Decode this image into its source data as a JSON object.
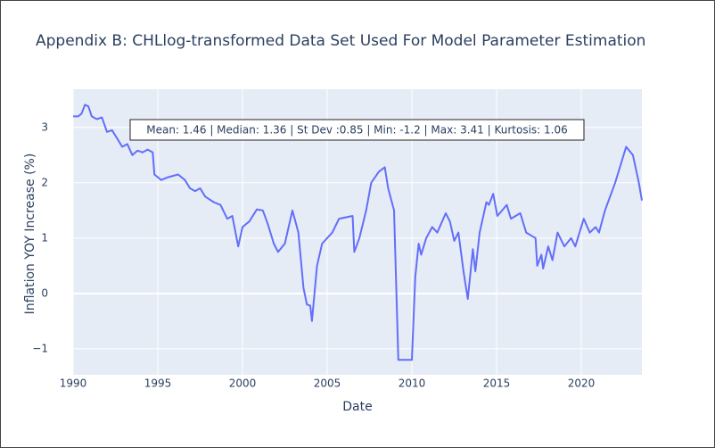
{
  "chart_data": {
    "type": "line",
    "title": "Appendix B: CHLlog-transformed Data Set Used For Model Parameter Estimation",
    "x_label": "Date",
    "y_label": "Inflation YOY Increase (%)",
    "annotation": "Mean: 1.46 | Median: 1.36 | St Dev :0.85 | Min: -1.2 | Max: 3.41 | Kurtosis: 1.06",
    "color": "#636efa",
    "grid": true,
    "xlim": [
      1990,
      2023.58
    ],
    "xticks": [
      1990,
      1995,
      2000,
      2005,
      2010,
      2015,
      2020
    ],
    "ylim": [
      -1.47,
      3.69
    ],
    "yticks": [
      {
        "value": -1,
        "label": "−1"
      },
      0,
      1,
      2,
      3
    ],
    "x": [
      1990.0,
      1990.3,
      1990.5,
      1990.7,
      1990.9,
      1991.1,
      1991.4,
      1991.7,
      1992.0,
      1992.3,
      1992.6,
      1992.9,
      1993.2,
      1993.5,
      1993.8,
      1994.1,
      1994.4,
      1994.7,
      1994.8,
      1995.2,
      1995.6,
      1996.2,
      1996.6,
      1996.9,
      1997.2,
      1997.5,
      1997.8,
      1998.3,
      1998.7,
      1999.1,
      1999.4,
      1999.75,
      2000.0,
      2000.4,
      2000.85,
      2001.2,
      2001.5,
      2001.85,
      2002.1,
      2002.5,
      2002.95,
      2003.3,
      2003.6,
      2003.8,
      2004.0,
      2004.1,
      2004.4,
      2004.7,
      2005.3,
      2005.7,
      2006.5,
      2006.6,
      2006.9,
      2007.3,
      2007.6,
      2008.05,
      2008.4,
      2008.6,
      2008.95,
      2009.2,
      2010.0,
      2010.2,
      2010.4,
      2010.55,
      2010.85,
      2011.2,
      2011.5,
      2012.0,
      2012.25,
      2012.5,
      2012.75,
      2013.05,
      2013.3,
      2013.6,
      2013.75,
      2014.0,
      2014.4,
      2014.55,
      2014.8,
      2015.05,
      2015.6,
      2015.85,
      2016.4,
      2016.75,
      2017.3,
      2017.4,
      2017.65,
      2017.75,
      2018.05,
      2018.3,
      2018.6,
      2019.0,
      2019.4,
      2019.65,
      2020.15,
      2020.5,
      2020.85,
      2021.05,
      2021.4,
      2022.0,
      2022.4,
      2022.65,
      2023.05,
      2023.4,
      2023.58
    ],
    "values": [
      3.2,
      3.2,
      3.25,
      3.41,
      3.38,
      3.2,
      3.15,
      3.18,
      2.92,
      2.95,
      2.8,
      2.65,
      2.7,
      2.5,
      2.58,
      2.55,
      2.6,
      2.55,
      2.15,
      2.05,
      2.1,
      2.15,
      2.05,
      1.9,
      1.85,
      1.9,
      1.75,
      1.65,
      1.6,
      1.35,
      1.4,
      0.85,
      1.2,
      1.3,
      1.52,
      1.5,
      1.25,
      0.9,
      0.75,
      0.9,
      1.5,
      1.1,
      0.1,
      -0.2,
      -0.22,
      -0.5,
      0.5,
      0.9,
      1.1,
      1.35,
      1.4,
      0.75,
      1.0,
      1.5,
      2.0,
      2.2,
      2.28,
      1.9,
      1.5,
      -1.2,
      -1.2,
      0.3,
      0.9,
      0.7,
      1.0,
      1.2,
      1.1,
      1.45,
      1.3,
      0.95,
      1.1,
      0.4,
      -0.1,
      0.8,
      0.4,
      1.1,
      1.65,
      1.6,
      1.8,
      1.4,
      1.6,
      1.35,
      1.45,
      1.1,
      1.0,
      0.5,
      0.7,
      0.45,
      0.85,
      0.6,
      1.1,
      0.85,
      1.0,
      0.85,
      1.35,
      1.1,
      1.2,
      1.1,
      1.5,
      2.0,
      2.4,
      2.65,
      2.5,
      2.0,
      1.68
    ]
  }
}
